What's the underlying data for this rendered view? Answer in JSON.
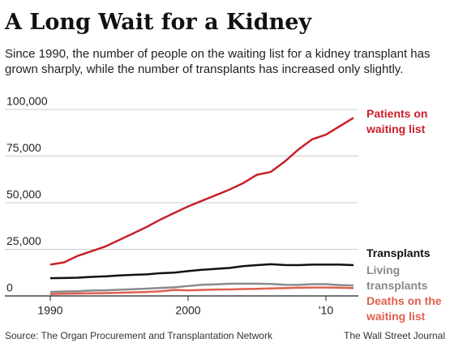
{
  "chart_data": {
    "type": "line",
    "title": "A Long Wait for a Kidney",
    "subtitle": "Since 1990, the number of people on the waiting list for a kidney transplant has grown sharply, while the number of transplants has increased only slightly.",
    "x": [
      1990,
      1991,
      1992,
      1993,
      1994,
      1995,
      1996,
      1997,
      1998,
      1999,
      2000,
      2001,
      2002,
      2003,
      2004,
      2005,
      2006,
      2007,
      2008,
      2009,
      2010,
      2011,
      2012
    ],
    "series": [
      {
        "name": "Patients on waiting list",
        "color": "#c8202a",
        "values": [
          16800,
          18000,
          21500,
          24000,
          26500,
          30000,
          33500,
          37000,
          41000,
          44500,
          48000,
          51000,
          54000,
          57000,
          60500,
          65000,
          66500,
          72000,
          78500,
          84000,
          86500,
          91000,
          95500
        ]
      },
      {
        "name": "Transplants",
        "color": "#111111",
        "values": [
          9500,
          9600,
          9800,
          10200,
          10500,
          11000,
          11300,
          11600,
          12200,
          12500,
          13300,
          14000,
          14500,
          15000,
          16000,
          16500,
          17000,
          16600,
          16500,
          16800,
          16800,
          16800,
          16500
        ]
      },
      {
        "name": "Living transplants",
        "color": "#8a8a8a",
        "values": [
          2100,
          2400,
          2500,
          2900,
          3000,
          3300,
          3600,
          3900,
          4300,
          4600,
          5300,
          6000,
          6200,
          6500,
          6600,
          6600,
          6400,
          6000,
          5900,
          6300,
          6300,
          5800,
          5600
        ]
      },
      {
        "name": "Deaths on the waiting list",
        "color": "#e0604e",
        "values": [
          1000,
          1200,
          1300,
          1400,
          1500,
          1700,
          1900,
          2100,
          2500,
          3200,
          3000,
          3200,
          3400,
          3500,
          3700,
          3800,
          4000,
          4200,
          4400,
          4500,
          4500,
          4400,
          4200
        ]
      }
    ],
    "xlim": [
      1990,
      2012
    ],
    "xticks": [
      1990,
      2000,
      {
        "value": 2010,
        "label": "'10"
      }
    ],
    "ylim": [
      0,
      100000
    ],
    "yticks": [
      0,
      {
        "value": 25000,
        "label": "25,000"
      },
      {
        "value": 50000,
        "label": "50,000"
      },
      {
        "value": 75000,
        "label": "75,000"
      },
      {
        "value": 100000,
        "label": "100,000"
      }
    ],
    "grid": true,
    "source": "Source: The Organ Procurement and Transplantation Network",
    "credit": "The Wall Street Journal"
  }
}
